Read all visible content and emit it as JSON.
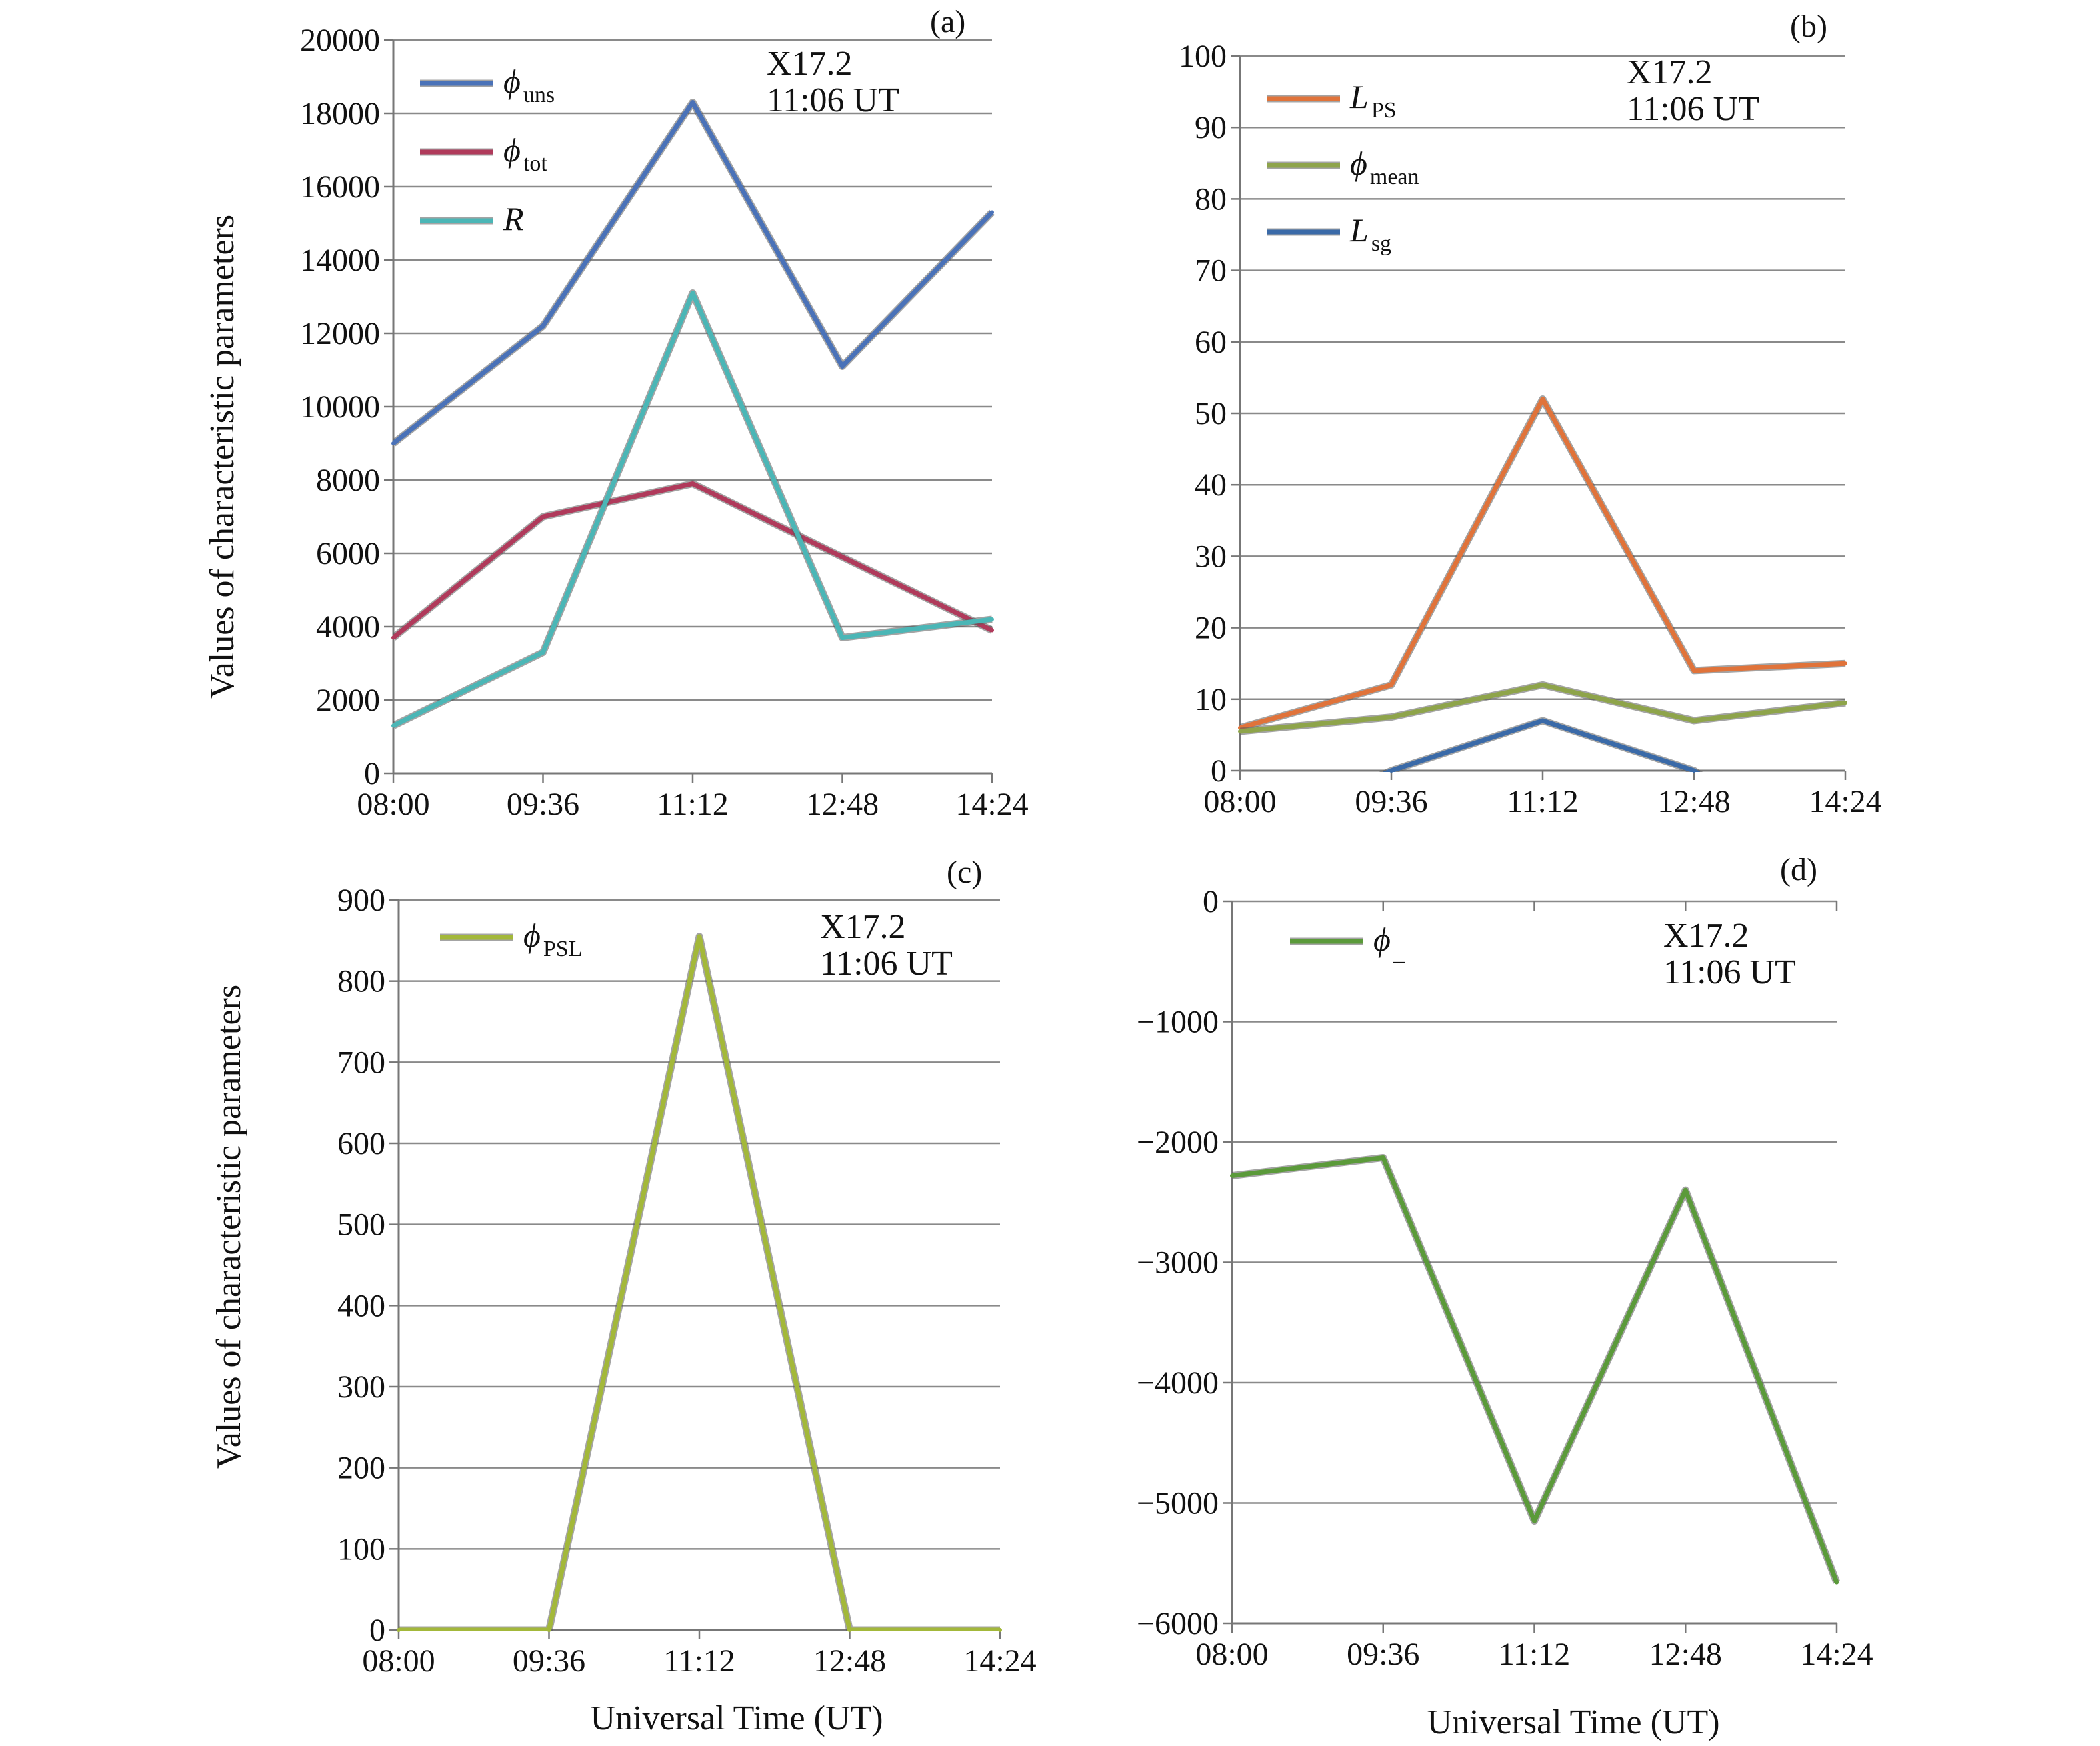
{
  "figure": {
    "y_axis_title": "Values of characteristic parameters",
    "x_axis_title": "Universal Time (UT)"
  },
  "chart_data": [
    {
      "type": "line",
      "panel_label": "(a)",
      "annotation": [
        "X17.2",
        "11:06 UT"
      ],
      "x_ticks": [
        "08:00",
        "09:36",
        "11:12",
        "12:48",
        "14:24"
      ],
      "y_ticks": [
        0,
        2000,
        4000,
        6000,
        8000,
        10000,
        12000,
        14000,
        16000,
        18000,
        20000
      ],
      "y_tick_labels": [
        "0",
        "2000",
        "4000",
        "6000",
        "8000",
        "10000",
        "12000",
        "14000",
        "16000",
        "18000",
        "20000"
      ],
      "ylim": [
        0,
        20000
      ],
      "grid": true,
      "xlabel": "",
      "ylabel": "Values of characteristic parameters",
      "legend_position": "top-left",
      "series": [
        {
          "symbol": "ϕ",
          "subscript": "uns",
          "color": "#4a72b8",
          "values": [
            9000,
            12200,
            18300,
            11100,
            15300
          ]
        },
        {
          "symbol": "ϕ",
          "subscript": "tot",
          "color": "#b03a5b",
          "values": [
            3700,
            7000,
            7900,
            5900,
            3900
          ]
        },
        {
          "symbol": "R",
          "subscript": "",
          "color": "#4bb6b6",
          "values": [
            1300,
            3300,
            13100,
            3700,
            4200
          ]
        }
      ]
    },
    {
      "type": "line",
      "panel_label": "(b)",
      "annotation": [
        "X17.2",
        "11:06 UT"
      ],
      "x_ticks": [
        "08:00",
        "09:36",
        "11:12",
        "12:48",
        "14:24"
      ],
      "y_ticks": [
        0,
        10,
        20,
        30,
        40,
        50,
        60,
        70,
        80,
        90,
        100
      ],
      "y_tick_labels": [
        "0",
        "10",
        "20",
        "30",
        "40",
        "50",
        "60",
        "70",
        "80",
        "90",
        "100"
      ],
      "ylim": [
        0,
        100
      ],
      "grid": true,
      "xlabel": "",
      "ylabel": "",
      "legend_position": "top-left",
      "series": [
        {
          "symbol": "L",
          "subscript": "PS",
          "color": "#e0733a",
          "values": [
            6,
            12,
            52,
            14,
            15
          ]
        },
        {
          "symbol": "ϕ",
          "subscript": "mean",
          "color": "#8ea44a",
          "values": [
            5.5,
            7.5,
            12,
            7,
            9.5
          ]
        },
        {
          "symbol": "L",
          "subscript": "sg",
          "color": "#3a6aa8",
          "values": [
            null,
            0,
            7,
            0,
            null
          ]
        }
      ]
    },
    {
      "type": "line",
      "panel_label": "(c)",
      "annotation": [
        "X17.2",
        "11:06 UT"
      ],
      "x_ticks": [
        "08:00",
        "09:36",
        "11:12",
        "12:48",
        "14:24"
      ],
      "y_ticks": [
        0,
        100,
        200,
        300,
        400,
        500,
        600,
        700,
        800,
        900
      ],
      "y_tick_labels": [
        "0",
        "100",
        "200",
        "300",
        "400",
        "500",
        "600",
        "700",
        "800",
        "900"
      ],
      "ylim": [
        0,
        900
      ],
      "grid": true,
      "xlabel": "Universal Time (UT)",
      "ylabel": "Values of characteristic parameters",
      "legend_position": "top-left",
      "series": [
        {
          "symbol": "ϕ",
          "subscript": "PSL",
          "color": "#a3b83a",
          "values": [
            0,
            0,
            855,
            0,
            0
          ]
        }
      ]
    },
    {
      "type": "line",
      "panel_label": "(d)",
      "annotation": [
        "X17.2",
        "11:06 UT"
      ],
      "x_ticks": [
        "08:00",
        "09:36",
        "11:12",
        "12:48",
        "14:24"
      ],
      "y_ticks": [
        0,
        -1000,
        -2000,
        -3000,
        -4000,
        -5000,
        -6000
      ],
      "y_tick_labels": [
        "0",
        "−1000",
        "−2000",
        "−3000",
        "−4000",
        "−5000",
        "−6000"
      ],
      "ylim": [
        -6000,
        0
      ],
      "grid": true,
      "xlabel": "Universal Time (UT)",
      "ylabel": "",
      "legend_position": "top-left",
      "series": [
        {
          "symbol": "ϕ",
          "subscript": "_",
          "color": "#5b9a3a",
          "values": [
            -2280,
            -2130,
            -5150,
            -2400,
            -5660
          ]
        }
      ]
    }
  ]
}
